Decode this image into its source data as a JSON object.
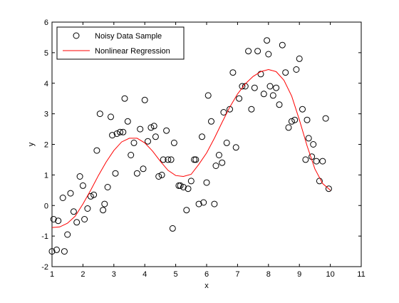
{
  "chart_data": {
    "type": "scatter",
    "xlabel": "x",
    "ylabel": "y",
    "xlim": [
      1,
      11
    ],
    "ylim": [
      -2,
      6
    ],
    "xticks": [
      1,
      2,
      3,
      4,
      5,
      6,
      7,
      8,
      9,
      10,
      11
    ],
    "yticks": [
      -2,
      -1,
      0,
      1,
      2,
      3,
      4,
      5,
      6
    ],
    "grid": false,
    "legend_position": "top-left",
    "colors": {
      "scatter": "#000000",
      "fit": "#ff0000",
      "axes": "#000000"
    },
    "series": [
      {
        "name": "Noisy Data Sample",
        "kind": "markers",
        "marker": "open-circle",
        "points": [
          [
            1.0,
            -1.5
          ],
          [
            1.05,
            -0.45
          ],
          [
            1.15,
            -1.45
          ],
          [
            1.2,
            -0.5
          ],
          [
            1.35,
            0.25
          ],
          [
            1.4,
            -1.5
          ],
          [
            1.5,
            -0.95
          ],
          [
            1.6,
            0.4
          ],
          [
            1.7,
            -0.2
          ],
          [
            1.8,
            -0.55
          ],
          [
            1.9,
            0.95
          ],
          [
            2.0,
            0.65
          ],
          [
            2.05,
            -0.45
          ],
          [
            2.15,
            -0.1
          ],
          [
            2.25,
            0.3
          ],
          [
            2.35,
            0.35
          ],
          [
            2.45,
            1.8
          ],
          [
            2.55,
            3.0
          ],
          [
            2.65,
            -0.15
          ],
          [
            2.7,
            0.05
          ],
          [
            2.8,
            0.6
          ],
          [
            2.9,
            2.9
          ],
          [
            2.95,
            2.3
          ],
          [
            3.05,
            1.05
          ],
          [
            3.1,
            2.35
          ],
          [
            3.2,
            2.4
          ],
          [
            3.3,
            2.4
          ],
          [
            3.35,
            3.5
          ],
          [
            3.45,
            2.75
          ],
          [
            3.55,
            1.65
          ],
          [
            3.65,
            2.05
          ],
          [
            3.75,
            1.05
          ],
          [
            3.85,
            2.5
          ],
          [
            3.95,
            1.2
          ],
          [
            4.0,
            3.45
          ],
          [
            4.1,
            2.1
          ],
          [
            4.2,
            2.55
          ],
          [
            4.3,
            2.6
          ],
          [
            4.35,
            2.25
          ],
          [
            4.45,
            0.95
          ],
          [
            4.55,
            1.0
          ],
          [
            4.6,
            1.5
          ],
          [
            4.7,
            2.45
          ],
          [
            4.75,
            1.5
          ],
          [
            4.85,
            1.5
          ],
          [
            4.9,
            -0.75
          ],
          [
            4.95,
            2.05
          ],
          [
            5.1,
            0.65
          ],
          [
            5.15,
            0.65
          ],
          [
            5.25,
            0.6
          ],
          [
            5.35,
            -0.15
          ],
          [
            5.4,
            0.55
          ],
          [
            5.5,
            0.8
          ],
          [
            5.6,
            1.5
          ],
          [
            5.65,
            1.5
          ],
          [
            5.75,
            0.05
          ],
          [
            5.85,
            2.25
          ],
          [
            5.9,
            0.1
          ],
          [
            6.0,
            0.75
          ],
          [
            6.05,
            3.6
          ],
          [
            6.15,
            2.75
          ],
          [
            6.25,
            0.05
          ],
          [
            6.3,
            1.3
          ],
          [
            6.4,
            1.65
          ],
          [
            6.5,
            1.4
          ],
          [
            6.55,
            3.05
          ],
          [
            6.65,
            2.05
          ],
          [
            6.75,
            3.15
          ],
          [
            6.85,
            4.35
          ],
          [
            6.95,
            1.9
          ],
          [
            7.05,
            3.5
          ],
          [
            7.15,
            3.9
          ],
          [
            7.25,
            3.9
          ],
          [
            7.35,
            5.05
          ],
          [
            7.45,
            3.15
          ],
          [
            7.55,
            3.85
          ],
          [
            7.65,
            5.05
          ],
          [
            7.75,
            4.3
          ],
          [
            7.85,
            3.65
          ],
          [
            7.95,
            5.4
          ],
          [
            8.0,
            4.95
          ],
          [
            8.05,
            3.9
          ],
          [
            8.15,
            3.6
          ],
          [
            8.25,
            3.85
          ],
          [
            8.35,
            3.3
          ],
          [
            8.45,
            5.25
          ],
          [
            8.55,
            4.35
          ],
          [
            8.65,
            2.55
          ],
          [
            8.75,
            2.75
          ],
          [
            8.85,
            2.8
          ],
          [
            8.9,
            4.45
          ],
          [
            9.0,
            4.8
          ],
          [
            9.1,
            3.15
          ],
          [
            9.2,
            1.5
          ],
          [
            9.25,
            2.8
          ],
          [
            9.3,
            2.2
          ],
          [
            9.4,
            1.6
          ],
          [
            9.45,
            2.0
          ],
          [
            9.55,
            1.45
          ],
          [
            9.65,
            0.8
          ],
          [
            9.75,
            1.45
          ],
          [
            9.85,
            2.85
          ],
          [
            9.95,
            0.55
          ]
        ]
      },
      {
        "name": "Nonlinear Regression",
        "kind": "line",
        "points": [
          [
            1.0,
            -0.72
          ],
          [
            1.25,
            -0.7
          ],
          [
            1.5,
            -0.58
          ],
          [
            1.75,
            -0.35
          ],
          [
            2.0,
            0.05
          ],
          [
            2.25,
            0.5
          ],
          [
            2.5,
            0.98
          ],
          [
            2.75,
            1.42
          ],
          [
            3.0,
            1.8
          ],
          [
            3.25,
            2.08
          ],
          [
            3.5,
            2.2
          ],
          [
            3.75,
            2.2
          ],
          [
            4.0,
            2.05
          ],
          [
            4.25,
            1.78
          ],
          [
            4.5,
            1.45
          ],
          [
            4.75,
            1.15
          ],
          [
            5.0,
            0.98
          ],
          [
            5.25,
            0.95
          ],
          [
            5.5,
            1.02
          ],
          [
            5.75,
            1.35
          ],
          [
            6.0,
            1.72
          ],
          [
            6.25,
            2.2
          ],
          [
            6.5,
            2.72
          ],
          [
            6.75,
            3.22
          ],
          [
            7.0,
            3.65
          ],
          [
            7.25,
            3.98
          ],
          [
            7.5,
            4.22
          ],
          [
            7.75,
            4.38
          ],
          [
            8.0,
            4.45
          ],
          [
            8.25,
            4.38
          ],
          [
            8.5,
            4.1
          ],
          [
            8.75,
            3.58
          ],
          [
            9.0,
            2.8
          ],
          [
            9.25,
            1.95
          ],
          [
            9.5,
            1.2
          ],
          [
            9.75,
            0.72
          ],
          [
            10.0,
            0.5
          ]
        ]
      }
    ]
  }
}
